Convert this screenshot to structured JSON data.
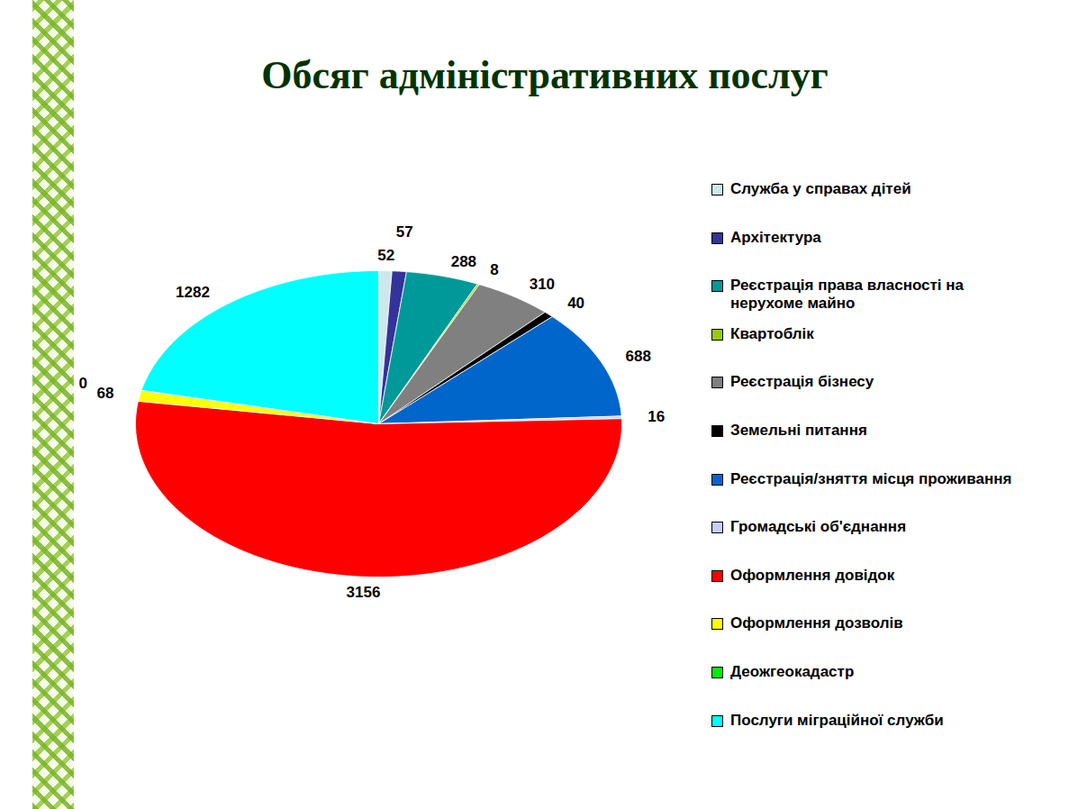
{
  "chart_data": {
    "type": "pie",
    "title": "Обсяг адміністративних послуг",
    "categories": [
      "Служба у справах дітей",
      "Архітектура",
      "Реєстрація права власності на нерухоме майно",
      "Квартоблік",
      "Реєстрація бізнесу",
      "Земельні питання",
      "Реєстрація/зняття місця проживання",
      "Громадські об'єднання",
      "Оформлення довідок",
      "Оформлення дозволів",
      "Деожгеокадастр",
      "Послуги міграційної служби"
    ],
    "values": [
      52,
      57,
      288,
      8,
      310,
      40,
      688,
      16,
      3156,
      68,
      0,
      1282
    ],
    "colors": [
      "#cce8ec",
      "#333399",
      "#009999",
      "#99cc00",
      "#808080",
      "#000000",
      "#0066cc",
      "#ccccff",
      "#ff0000",
      "#ffff00",
      "#00ee00",
      "#00ffff"
    ],
    "data_labels": true,
    "legend": "right"
  }
}
